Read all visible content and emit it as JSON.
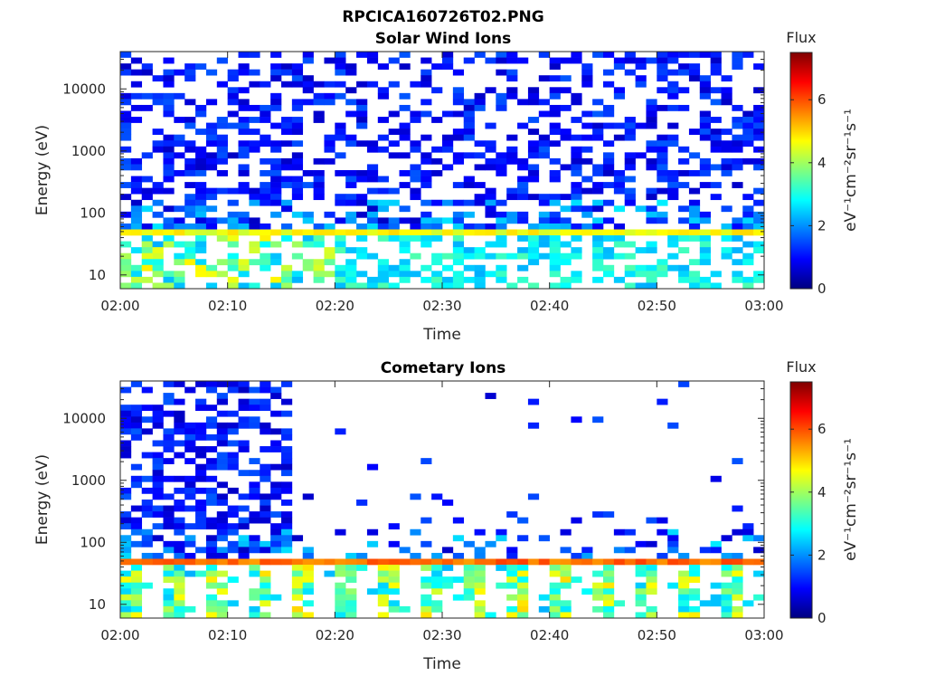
{
  "figure_title": "RPCICA160726T02.PNG",
  "colormap": {
    "name": "jet",
    "stops": [
      "#00007f",
      "#0000ff",
      "#007fff",
      "#00ffff",
      "#7fff7f",
      "#ffff00",
      "#ff7f00",
      "#ff0000",
      "#7f0000"
    ],
    "range": [
      0,
      7.5
    ]
  },
  "chart_data": [
    {
      "type": "heatmap",
      "title": "Solar Wind Ions",
      "xlabel": "Time",
      "ylabel": "Energy (eV)",
      "x_ticks": [
        "02:00",
        "02:10",
        "02:20",
        "02:30",
        "02:40",
        "02:50",
        "03:00"
      ],
      "x_range": [
        "02:00",
        "03:00"
      ],
      "y_scale": "log",
      "y_range": [
        6,
        40000
      ],
      "y_ticks": [
        {
          "value": 10,
          "label": "10"
        },
        {
          "value": 100,
          "label": "100"
        },
        {
          "value": 1000,
          "label": "1000"
        },
        {
          "value": 10000,
          "label": "10000"
        }
      ],
      "colorbar": {
        "title": "Flux",
        "label": "eV⁻¹cm⁻²sr⁻¹s⁻¹",
        "ticks": [
          0,
          2,
          4,
          6
        ],
        "range": [
          0,
          7.5
        ]
      },
      "features": [
        {
          "energy_range": [
            40,
            60
          ],
          "flux": 4.6,
          "coverage": "continuous"
        },
        {
          "energy_range": [
            6,
            40
          ],
          "flux": 2.8,
          "coverage": "sparse"
        },
        {
          "energy_range": [
            60,
            40000
          ],
          "flux": 1.0,
          "coverage": "sparse"
        }
      ]
    },
    {
      "type": "heatmap",
      "title": "Cometary Ions",
      "xlabel": "Time",
      "ylabel": "Energy (eV)",
      "x_ticks": [
        "02:00",
        "02:10",
        "02:20",
        "02:30",
        "02:40",
        "02:50",
        "03:00"
      ],
      "x_range": [
        "02:00",
        "03:00"
      ],
      "y_scale": "log",
      "y_range": [
        6,
        40000
      ],
      "y_ticks": [
        {
          "value": 10,
          "label": "10"
        },
        {
          "value": 100,
          "label": "100"
        },
        {
          "value": 1000,
          "label": "1000"
        },
        {
          "value": 10000,
          "label": "10000"
        }
      ],
      "colorbar": {
        "title": "Flux",
        "label": "eV⁻¹cm⁻²sr⁻¹s⁻¹",
        "ticks": [
          0,
          2,
          4,
          6
        ],
        "range": [
          0,
          7.5
        ]
      },
      "features": [
        {
          "energy_range": [
            40,
            60
          ],
          "flux": 5.8,
          "coverage": "continuous"
        },
        {
          "energy_range": [
            6,
            40
          ],
          "flux": 3.5,
          "coverage": "periodic"
        },
        {
          "energy_range": [
            60,
            40000
          ],
          "flux": 1.0,
          "coverage": "dense until 02:16, sparse after"
        }
      ]
    }
  ]
}
